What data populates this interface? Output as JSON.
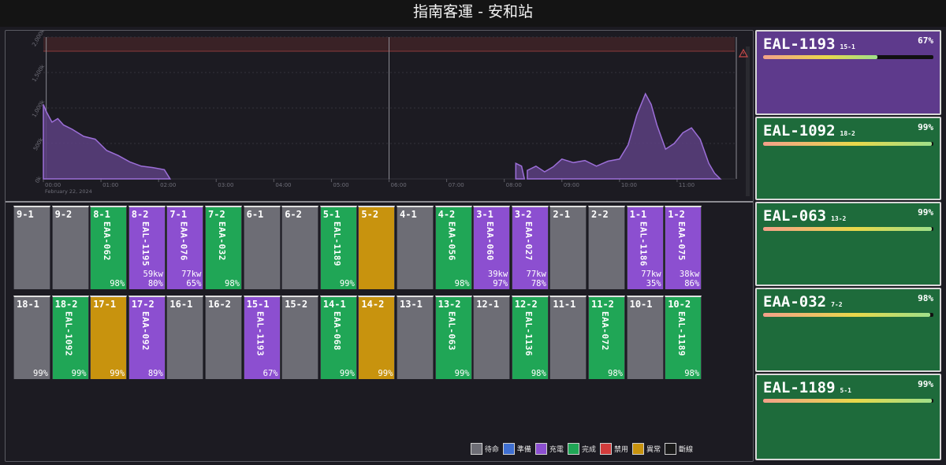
{
  "title": "指南客運 - 安和站",
  "colors": {
    "idle": "#6d6d75",
    "ready": "#3f6fd1",
    "charging": "#8c4fd0",
    "done": "#20a656",
    "disabled": "#d23c3c",
    "abnormal": "#c8930e",
    "offline": "#1a1a1a",
    "card_charging": "#5e3a8c",
    "card_done": "#1e6b3b"
  },
  "chart": {
    "y_ticks": [
      "2,000k",
      "1,500k",
      "1,000k",
      "500k",
      "0k"
    ],
    "x_ticks": [
      "00:00",
      "01:00",
      "02:00",
      "03:00",
      "04:00",
      "05:00",
      "06:00",
      "07:00",
      "08:00",
      "09:00",
      "10:00",
      "11:00"
    ],
    "date_label": "February 22, 2024",
    "warning_icon": "warning-triangle-icon"
  },
  "chart_data": {
    "type": "area",
    "ylim": [
      0,
      2000
    ],
    "xlim": [
      0,
      12
    ],
    "threshold": 1800,
    "series": [
      {
        "x": [
          0,
          0.05,
          0.15,
          0.25,
          0.35,
          0.5,
          0.7,
          0.9,
          1.1,
          1.3,
          1.5,
          1.7,
          1.9,
          2.1,
          2.2,
          8.2,
          8.3,
          8.35,
          8.4,
          8.55,
          8.7,
          8.85,
          9.0,
          9.2,
          9.4,
          9.6,
          9.8,
          10.0,
          10.15,
          10.3,
          10.45,
          10.55,
          10.65,
          10.8,
          10.95,
          11.1,
          11.25,
          11.4,
          11.55,
          11.65,
          11.75
        ],
        "y": [
          1050,
          950,
          800,
          850,
          760,
          700,
          600,
          560,
          400,
          330,
          240,
          180,
          160,
          130,
          0,
          220,
          180,
          0,
          120,
          180,
          100,
          170,
          280,
          230,
          260,
          180,
          250,
          280,
          480,
          900,
          1200,
          1050,
          760,
          420,
          500,
          650,
          720,
          560,
          220,
          80,
          0
        ]
      }
    ]
  },
  "bays_top": [
    {
      "label": "9-1",
      "status": "idle",
      "vehicle": "",
      "kw": "",
      "pct": ""
    },
    {
      "label": "9-2",
      "status": "idle",
      "vehicle": "",
      "kw": "",
      "pct": ""
    },
    {
      "label": "8-1",
      "status": "done",
      "vehicle": "EAA-062",
      "kw": "",
      "pct": "98%"
    },
    {
      "label": "8-2",
      "status": "charging",
      "vehicle": "EAL-1195",
      "kw": "59kw",
      "pct": "80%"
    },
    {
      "label": "7-1",
      "status": "charging",
      "vehicle": "EAA-076",
      "kw": "77kw",
      "pct": "65%"
    },
    {
      "label": "7-2",
      "status": "done",
      "vehicle": "EAA-032",
      "kw": "",
      "pct": "98%"
    },
    {
      "label": "6-1",
      "status": "idle",
      "vehicle": "",
      "kw": "",
      "pct": ""
    },
    {
      "label": "6-2",
      "status": "idle",
      "vehicle": "",
      "kw": "",
      "pct": ""
    },
    {
      "label": "5-1",
      "status": "done",
      "vehicle": "EAL-1189",
      "kw": "",
      "pct": "99%"
    },
    {
      "label": "5-2",
      "status": "abnormal",
      "vehicle": "",
      "kw": "",
      "pct": ""
    },
    {
      "label": "4-1",
      "status": "idle",
      "vehicle": "",
      "kw": "",
      "pct": ""
    },
    {
      "label": "4-2",
      "status": "done",
      "vehicle": "EAA-056",
      "kw": "",
      "pct": "98%"
    },
    {
      "label": "3-1",
      "status": "charging",
      "vehicle": "EAA-060",
      "kw": "39kw",
      "pct": "97%"
    },
    {
      "label": "3-2",
      "status": "charging",
      "vehicle": "EAA-027",
      "kw": "77kw",
      "pct": "78%"
    },
    {
      "label": "2-1",
      "status": "idle",
      "vehicle": "",
      "kw": "",
      "pct": ""
    },
    {
      "label": "2-2",
      "status": "idle",
      "vehicle": "",
      "kw": "",
      "pct": ""
    },
    {
      "label": "1-1",
      "status": "charging",
      "vehicle": "EAL-1186",
      "kw": "77kw",
      "pct": "35%"
    },
    {
      "label": "1-2",
      "status": "charging",
      "vehicle": "EAA-075",
      "kw": "38kw",
      "pct": "86%"
    }
  ],
  "bays_bottom": [
    {
      "label": "18-1",
      "status": "idle",
      "vehicle": "",
      "kw": "",
      "pct": "99%"
    },
    {
      "label": "18-2",
      "status": "done",
      "vehicle": "EAL-1092",
      "kw": "",
      "pct": "99%"
    },
    {
      "label": "17-1",
      "status": "abnormal",
      "vehicle": "",
      "kw": "",
      "pct": "99%"
    },
    {
      "label": "17-2",
      "status": "charging",
      "vehicle": "EAA-092",
      "kw": "",
      "pct": "89%"
    },
    {
      "label": "16-1",
      "status": "idle",
      "vehicle": "",
      "kw": "",
      "pct": ""
    },
    {
      "label": "16-2",
      "status": "idle",
      "vehicle": "",
      "kw": "",
      "pct": ""
    },
    {
      "label": "15-1",
      "status": "charging",
      "vehicle": "EAL-1193",
      "kw": "",
      "pct": "67%"
    },
    {
      "label": "15-2",
      "status": "idle",
      "vehicle": "",
      "kw": "",
      "pct": ""
    },
    {
      "label": "14-1",
      "status": "done",
      "vehicle": "EAA-068",
      "kw": "",
      "pct": "99%"
    },
    {
      "label": "14-2",
      "status": "abnormal",
      "vehicle": "",
      "kw": "",
      "pct": "99%"
    },
    {
      "label": "13-1",
      "status": "idle",
      "vehicle": "",
      "kw": "",
      "pct": ""
    },
    {
      "label": "13-2",
      "status": "done",
      "vehicle": "EAL-063",
      "kw": "",
      "pct": "99%"
    },
    {
      "label": "12-1",
      "status": "idle",
      "vehicle": "",
      "kw": "",
      "pct": ""
    },
    {
      "label": "12-2",
      "status": "done",
      "vehicle": "EAL-1136",
      "kw": "",
      "pct": "98%"
    },
    {
      "label": "11-1",
      "status": "idle",
      "vehicle": "",
      "kw": "",
      "pct": ""
    },
    {
      "label": "11-2",
      "status": "done",
      "vehicle": "EAA-072",
      "kw": "",
      "pct": "98%"
    },
    {
      "label": "10-1",
      "status": "idle",
      "vehicle": "",
      "kw": "",
      "pct": ""
    },
    {
      "label": "10-2",
      "status": "done",
      "vehicle": "EAL-1189",
      "kw": "",
      "pct": "98%"
    }
  ],
  "legend": [
    {
      "label": "待命",
      "status": "idle"
    },
    {
      "label": "準備",
      "status": "ready"
    },
    {
      "label": "充電",
      "status": "charging"
    },
    {
      "label": "完成",
      "status": "done"
    },
    {
      "label": "禁用",
      "status": "disabled"
    },
    {
      "label": "異常",
      "status": "abnormal"
    },
    {
      "label": "斷線",
      "status": "offline"
    }
  ],
  "cards": [
    {
      "vehicle": "EAL-1193",
      "bay": "15-1",
      "pct": "67%",
      "fill": 0.67,
      "status": "charging"
    },
    {
      "vehicle": "EAL-1092",
      "bay": "18-2",
      "pct": "99%",
      "fill": 0.99,
      "status": "done"
    },
    {
      "vehicle": "EAL-063",
      "bay": "13-2",
      "pct": "99%",
      "fill": 0.99,
      "status": "done"
    },
    {
      "vehicle": "EAA-032",
      "bay": "7-2",
      "pct": "98%",
      "fill": 0.98,
      "status": "done"
    },
    {
      "vehicle": "EAL-1189",
      "bay": "5-1",
      "pct": "99%",
      "fill": 0.99,
      "status": "done"
    }
  ]
}
